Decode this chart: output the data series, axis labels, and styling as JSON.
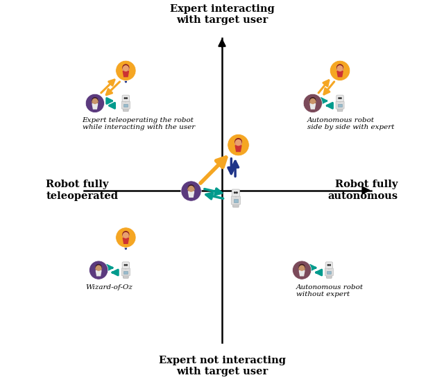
{
  "title": "Expert interacting\nwith target user",
  "bottom_label": "Expert not interacting\nwith target user",
  "left_label": "Robot fully\nteleoperated",
  "right_label": "Robot fully\nautonomous",
  "quadrant_labels": {
    "top_left": "Expert teleoperating the robot\nwhile interacting with the user",
    "top_right": "Autonomous robot\nside by side with expert",
    "bottom_left": "Wizard-of-Oz",
    "bottom_right": "Autonomous robot\nwithout expert"
  },
  "colors": {
    "orange": "#F5A623",
    "teal": "#009B8D",
    "navy": "#1F3488",
    "black": "#000000",
    "white": "#FFFFFF",
    "expert_orange": "#F5A623",
    "user_purple": "#5B3A7E",
    "user_dark": "#7B4A5A",
    "robot_body": "#D8D8D8",
    "robot_screen": "#99BBCC"
  },
  "background": "#FFFFFF"
}
